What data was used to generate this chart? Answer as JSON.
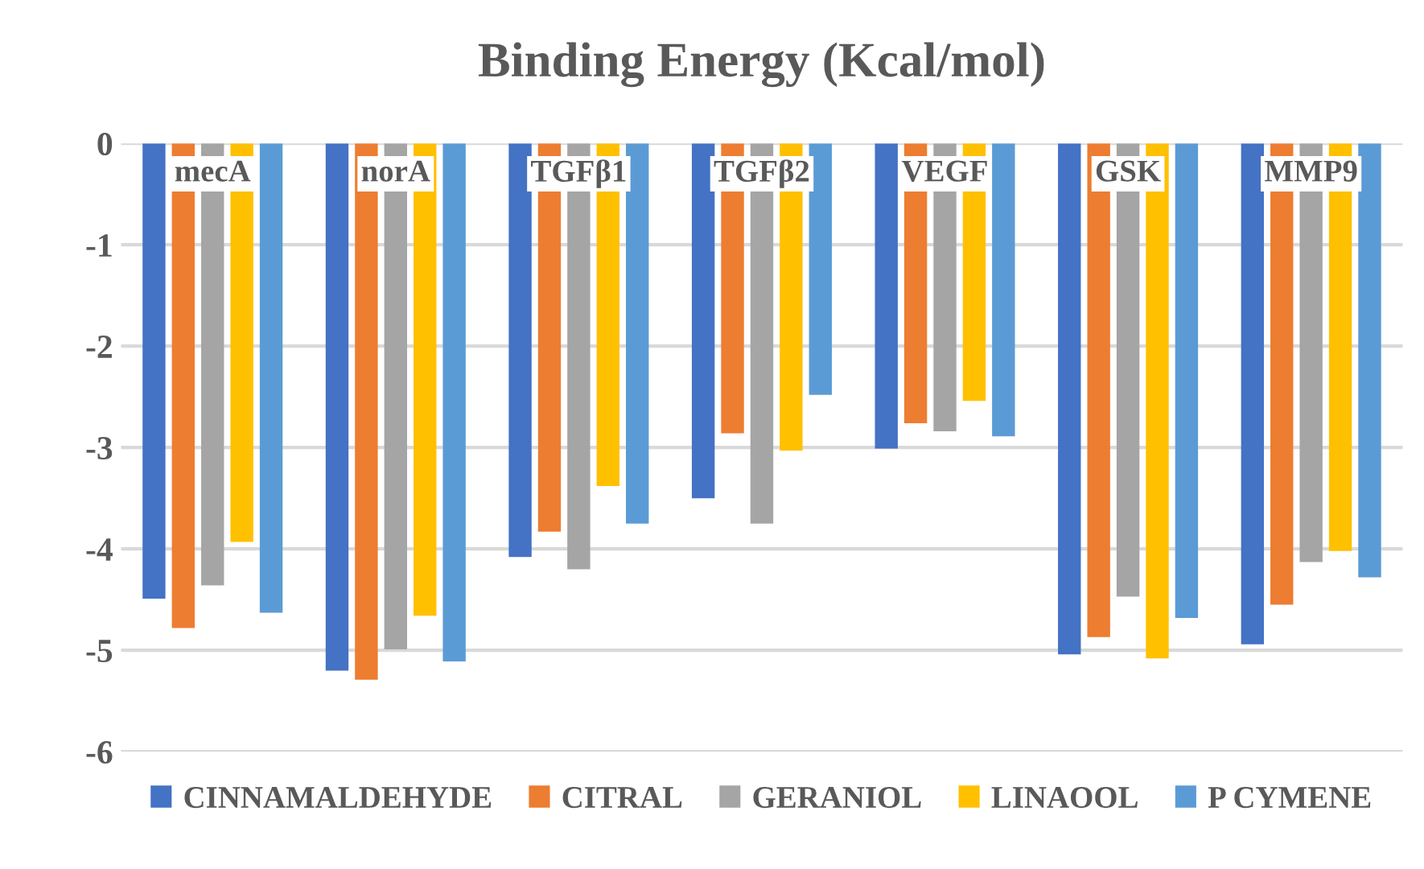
{
  "chart_data": {
    "type": "bar",
    "title": "Binding Energy (Kcal/mol)",
    "categories": [
      "mecA",
      "norA",
      "TGFβ1",
      "TGFβ2",
      "VEGF",
      "GSK",
      "MMP9"
    ],
    "series": [
      {
        "name": "CINNAMALDEHYDE",
        "color": "#4472c4",
        "values": [
          -4.49,
          -5.2,
          -4.08,
          -3.5,
          -3.01,
          -5.04,
          -4.94
        ]
      },
      {
        "name": "CITRAL",
        "color": "#ed7d31",
        "values": [
          -4.78,
          -5.29,
          -3.83,
          -2.86,
          -2.76,
          -4.87,
          -4.55
        ]
      },
      {
        "name": "GERANIOL",
        "color": "#a5a5a5",
        "values": [
          -4.36,
          -4.99,
          -4.2,
          -3.75,
          -2.84,
          -4.47,
          -4.13
        ]
      },
      {
        "name": "LINAOOL",
        "color": "#ffc000",
        "values": [
          -3.93,
          -4.66,
          -3.38,
          -3.03,
          -2.54,
          -5.08,
          -4.02
        ]
      },
      {
        "name": "P CYMENE",
        "color": "#5b9bd5",
        "values": [
          -4.63,
          -5.11,
          -3.75,
          -2.48,
          -2.89,
          -4.68,
          -4.28
        ]
      }
    ],
    "ylim": [
      -6,
      0
    ],
    "yticks": [
      -6,
      -5,
      -4,
      -3,
      -2,
      -1,
      0
    ],
    "grid": "y",
    "legend": "bottom"
  }
}
